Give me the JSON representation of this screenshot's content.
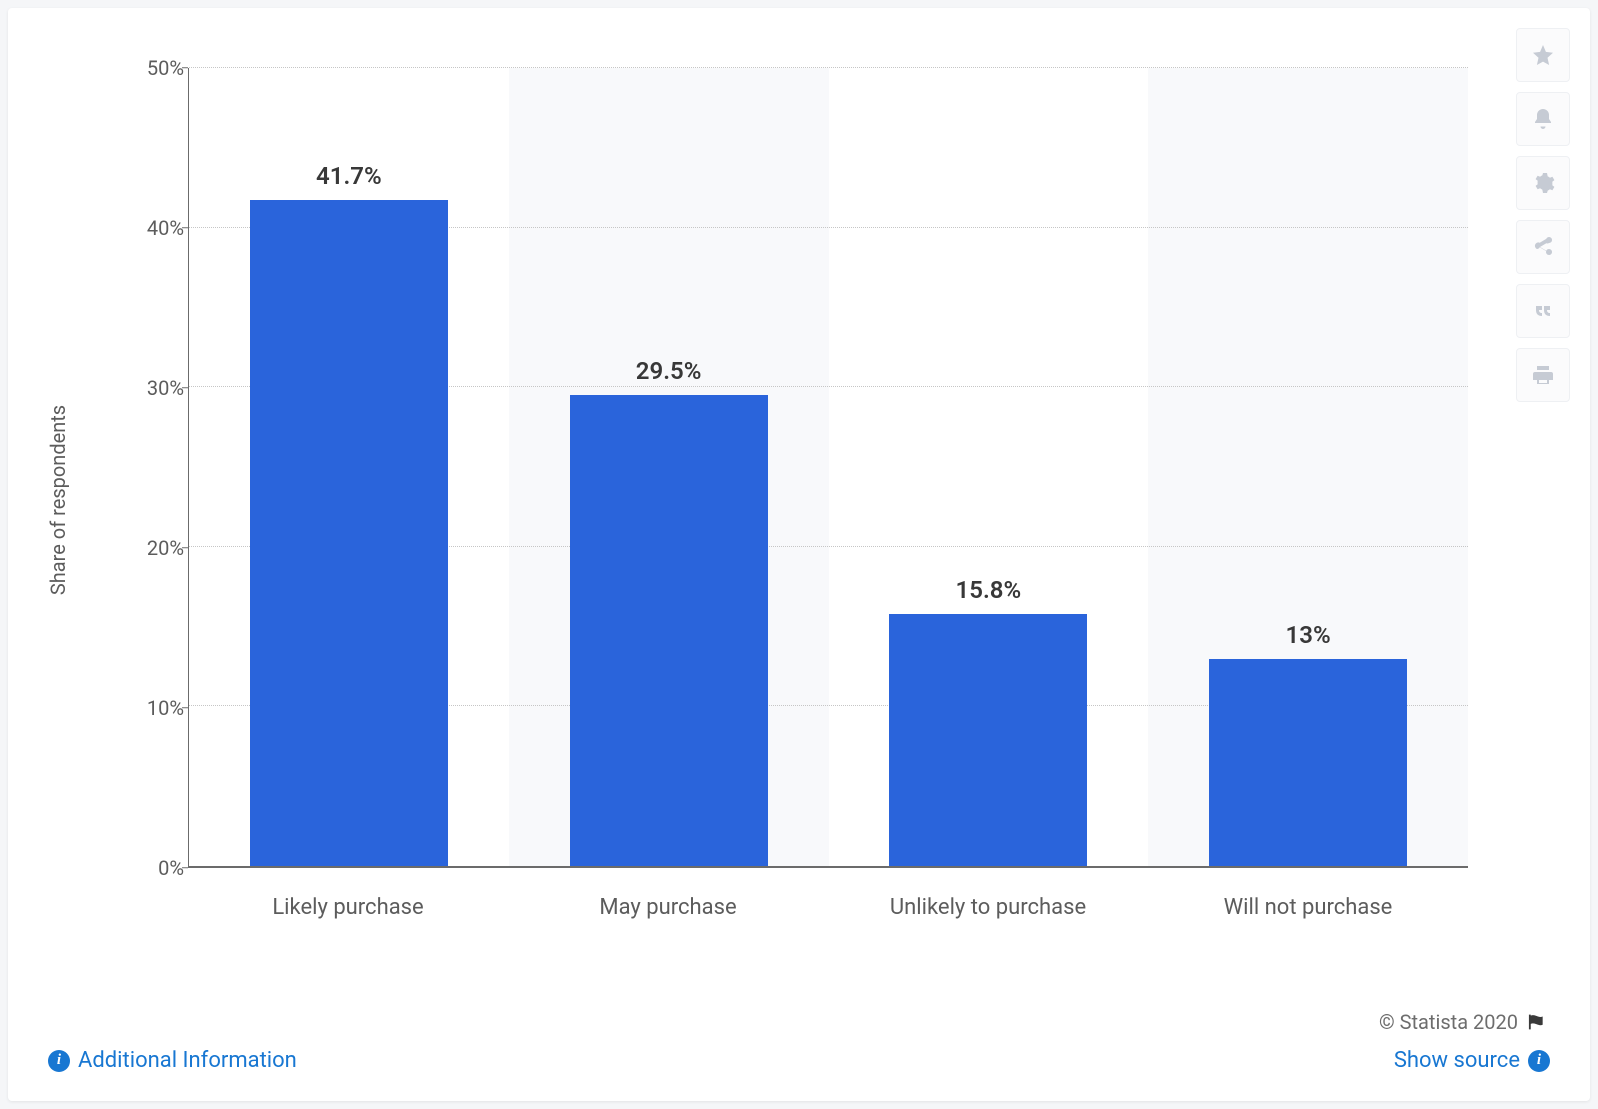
{
  "chart": {
    "type": "bar",
    "y_axis_label": "Share of respondents",
    "categories": [
      "Likely purchase",
      "May purchase",
      "Unlikely to purchase",
      "Will not purchase"
    ],
    "values": [
      41.7,
      29.5,
      15.8,
      13
    ],
    "value_labels": [
      "41.7%",
      "29.5%",
      "15.8%",
      "13%"
    ],
    "bar_color": "#2a64db",
    "ylim": [
      0,
      50
    ],
    "ytick_step": 10,
    "yticks": [
      "0%",
      "10%",
      "20%",
      "30%",
      "40%",
      "50%"
    ],
    "grid_color": "#c6c6c6",
    "band_color_alt": "#f8f9fb",
    "band_color": "#ffffff",
    "axis_text_color": "#5c5c5c",
    "bar_label_color": "#383838",
    "bar_label_fontsize": 24,
    "axis_fontsize": 20,
    "xlabel_fontsize": 22,
    "background_color": "#ffffff"
  },
  "footer": {
    "copyright": "© Statista 2020",
    "additional_info": "Additional Information",
    "show_source": "Show source"
  },
  "toolbar_icons": [
    "star",
    "bell",
    "gear",
    "share",
    "quote",
    "print"
  ]
}
